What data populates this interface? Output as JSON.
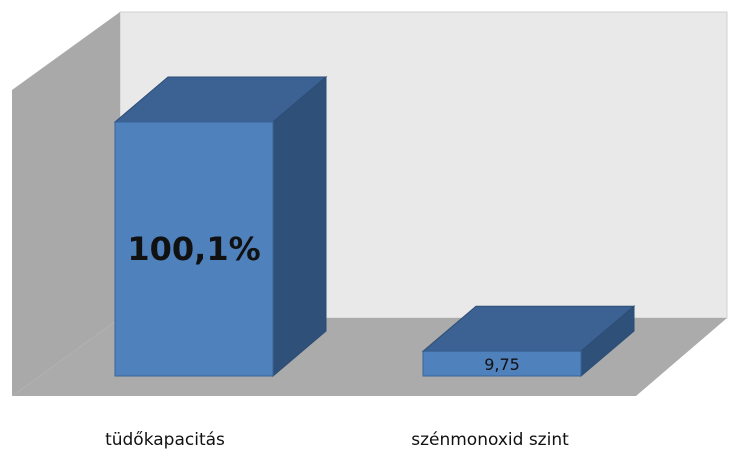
{
  "chart_data": {
    "type": "bar3d",
    "categories": [
      "tüdőkapacitás",
      "szénmonoxid szint"
    ],
    "values": [
      100.1,
      9.75
    ],
    "value_labels": [
      "100,1%",
      "9,75"
    ],
    "color": "#4f81bd"
  }
}
